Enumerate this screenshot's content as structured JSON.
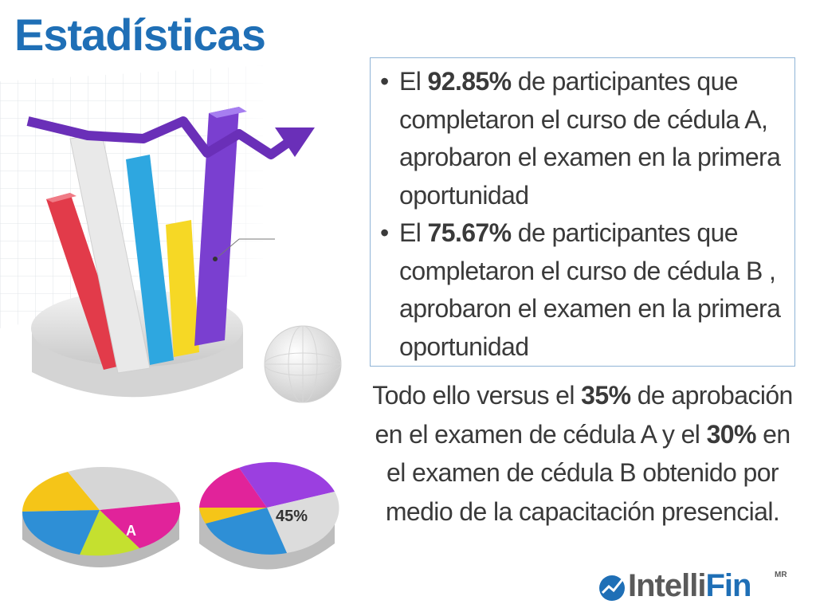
{
  "slide": {
    "title": "Estadísticas"
  },
  "bullets": [
    {
      "pre": "El ",
      "value": "92.85%",
      "post": " de participantes que completaron el curso de cédula A, aprobaron el examen en la primera oportunidad"
    },
    {
      "pre": "El ",
      "value": "75.67%",
      "post": "  de participantes que completaron el curso de cédula B , aprobaron el examen en la primera oportunidad"
    }
  ],
  "summary": {
    "t1": "Todo ello versus el ",
    "v1": "35%",
    "t2": " de aprobación en el examen de cédula A y el ",
    "v2": "30%",
    "t3": " en el  examen de cédula B  obtenido por medio de la capacitación presencial."
  },
  "illustration": {
    "pie_left_label": "A",
    "pie_right_label": "45%"
  },
  "logo": {
    "part1": "Intelli",
    "part2": "Fin",
    "mark": "MR"
  },
  "colors": {
    "title": "#1f6fb6",
    "text": "#3a3a3a",
    "box_border": "#8fb4d6"
  }
}
